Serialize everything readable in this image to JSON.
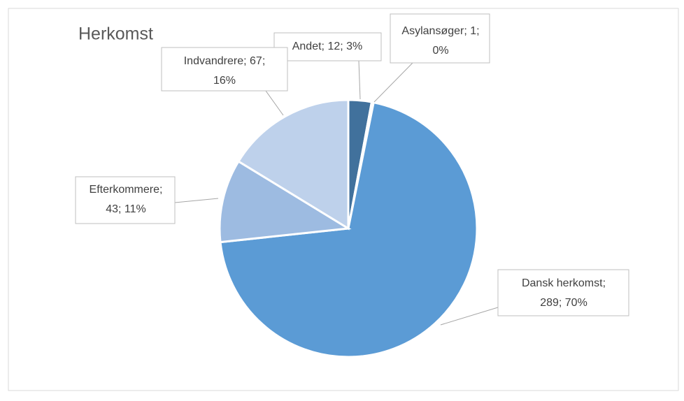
{
  "chart_data": {
    "type": "pie",
    "title": "Herkomst",
    "values": [
      12,
      1,
      289,
      43,
      67
    ],
    "value_labels": [
      [
        "Andet; 12; 3%"
      ],
      [
        "Asylansøger; 1;",
        "0%"
      ],
      [
        "Dansk herkomst;",
        "289; 70%"
      ],
      [
        "Efterkommere;",
        "43; 11%"
      ],
      [
        "Indvandrere; 67;",
        "16%"
      ]
    ],
    "colors": [
      "#41719c",
      "#2e75b6",
      "#5b9bd5",
      "#9dbbe1",
      "#bed1eb"
    ]
  }
}
